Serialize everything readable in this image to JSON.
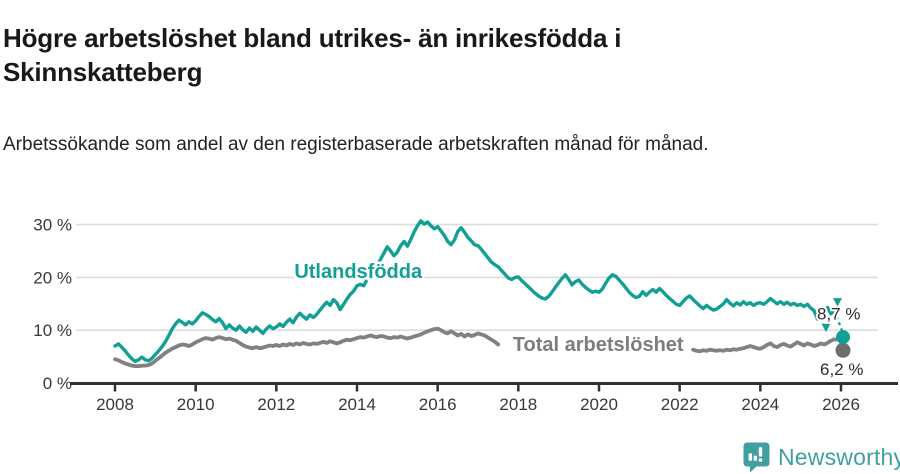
{
  "header": {
    "title": "Högre arbetslöshet bland utrikes- än inrikesfödda i Skinnskatteberg",
    "subtitle": "Arbetssökande som andel av den registerbaserade arbetskraften månad för månad."
  },
  "footer": {
    "brand": "Newsworthy",
    "brand_color": "#3f9fa4"
  },
  "chart_data": {
    "type": "line",
    "title": "Högre arbetslöshet bland utrikes- än inrikesfödda i Skinnskatteberg",
    "subtitle": "Arbetssökande som andel av den registerbaserade arbetskraften månad för månad.",
    "unit": "%",
    "grid": true,
    "x_axis": {
      "ticks": [
        2008,
        2010,
        2012,
        2014,
        2016,
        2018,
        2020,
        2022,
        2024,
        2026
      ],
      "labels": [
        "2008",
        "2010",
        "2012",
        "2014",
        "2016",
        "2018",
        "2020",
        "2022",
        "2024",
        "2026"
      ],
      "range": [
        2007.5,
        2026.5
      ]
    },
    "y_axis": {
      "ticks": [
        0,
        10,
        20,
        30
      ],
      "labels": [
        "0 %",
        "10 %",
        "20 %",
        "30 %"
      ],
      "range": [
        0,
        32
      ]
    },
    "series": [
      {
        "id": "total",
        "name": "Total arbetslöshet",
        "color": "#818181",
        "dot_color": "#6e6e6e",
        "width": 3.8,
        "label_pos": {
          "year": 2019.98,
          "value": 7.4
        },
        "label_side": "below",
        "arrows": false,
        "segments": [
          {
            "start_year": 2008.0,
            "step_months": 1,
            "values": [
              4.5,
              4.3,
              4.0,
              3.7,
              3.5,
              3.3,
              3.2,
              3.2,
              3.3,
              3.3,
              3.4,
              3.7,
              4.2,
              4.7,
              5.2,
              5.7,
              6.1,
              6.5,
              6.8,
              7.1,
              7.3,
              7.2,
              7.0,
              7.3,
              7.7,
              8.0,
              8.3,
              8.5,
              8.4,
              8.2,
              8.5,
              8.7,
              8.5,
              8.3,
              8.4,
              8.2,
              8.0,
              7.6,
              7.2,
              6.9,
              6.7,
              6.6,
              6.8,
              6.6,
              6.7,
              6.9,
              7.1,
              7.0,
              7.2,
              7.0,
              7.3,
              7.1,
              7.4,
              7.2,
              7.5,
              7.3,
              7.6,
              7.4,
              7.3,
              7.5,
              7.4,
              7.6,
              7.8,
              7.6,
              7.9,
              7.7,
              7.5,
              7.7,
              8.0,
              8.2,
              8.1,
              8.3,
              8.5,
              8.7,
              8.6,
              8.8,
              9.0,
              8.8,
              8.7,
              8.9,
              8.8,
              8.6,
              8.5,
              8.7,
              8.6,
              8.8,
              8.6,
              8.4,
              8.6,
              8.8,
              9.0,
              9.2,
              9.5,
              9.8,
              10.0,
              10.2,
              10.3,
              10.0,
              9.6,
              9.4,
              9.8,
              9.4,
              9.0,
              9.3,
              8.8,
              9.2,
              8.9,
              9.1,
              9.4,
              9.2,
              9.0,
              8.6,
              8.2,
              7.8,
              7.3
            ]
          },
          {
            "start_year": 2022.3333,
            "step_months": 1,
            "values": [
              6.3,
              6.1,
              6.0,
              6.2,
              6.1,
              6.3,
              6.2,
              6.1,
              6.2,
              6.1,
              6.3,
              6.2,
              6.4,
              6.3,
              6.5,
              6.6,
              6.8,
              7.0,
              6.8,
              6.6,
              6.5,
              6.8,
              7.2,
              7.5,
              7.0,
              6.8,
              7.2,
              7.4,
              7.1,
              6.9,
              7.3,
              7.7,
              7.4,
              7.1,
              7.5,
              7.3,
              7.0,
              7.2,
              7.5,
              7.3,
              7.6,
              8.0,
              8.3
            ]
          }
        ],
        "latest": {
          "year": 2026.05,
          "value": 6.2,
          "label": "6,2 %"
        }
      },
      {
        "id": "utlandsfodda",
        "name": "Utlandsfödda",
        "color": "#12a095",
        "dot_color": "#12a095",
        "width": 3.4,
        "label_pos": {
          "year": 2014.03,
          "value": 21.2
        },
        "label_side": "above",
        "arrows": true,
        "segments": [
          {
            "start_year": 2008.0,
            "step_months": 1,
            "values": [
              7.0,
              7.4,
              6.8,
              6.1,
              5.3,
              4.6,
              4.1,
              4.4,
              4.9,
              4.4,
              4.2,
              4.7,
              5.4,
              6.1,
              6.9,
              7.8,
              9.0,
              10.2,
              11.2,
              11.9,
              11.5,
              11.0,
              11.6,
              11.2,
              11.8,
              12.6,
              13.3,
              13.0,
              12.6,
              12.0,
              11.6,
              12.2,
              11.4,
              10.3,
              11.0,
              10.4,
              10.0,
              10.8,
              10.1,
              9.6,
              10.4,
              9.8,
              10.6,
              10.0,
              9.4,
              10.2,
              10.8,
              10.3,
              10.6,
              11.2,
              10.7,
              11.5,
              12.1,
              11.4,
              12.5,
              13.2,
              12.6,
              12.1,
              12.9,
              12.4,
              13.0,
              13.8,
              14.6,
              15.3,
              14.7,
              15.8,
              15.2,
              13.9,
              14.9,
              15.9,
              16.8,
              17.4,
              18.4,
              18.7,
              18.4,
              19.6,
              21.1,
              22.9,
              22.2,
              23.4,
              24.6,
              25.8,
              25.0,
              24.1,
              24.8,
              26.0,
              26.8,
              25.9,
              27.2,
              28.6,
              29.8,
              30.7,
              30.1,
              30.5,
              29.8,
              29.2,
              29.6,
              28.8,
              27.9,
              26.8,
              26.2,
              27.1,
              28.7,
              29.4,
              28.5,
              27.6,
              26.9,
              26.2,
              26.0,
              25.3,
              24.5,
              23.7,
              22.9,
              22.4,
              22.0,
              21.3,
              20.6,
              19.9,
              19.6,
              20.0,
              20.1,
              19.4,
              18.8,
              18.2,
              17.6,
              17.0,
              16.5,
              16.1,
              15.9,
              16.4,
              17.2,
              18.1,
              19.0,
              19.8,
              20.5,
              19.6,
              18.6,
              19.2,
              19.5,
              18.7,
              18.1,
              17.6,
              17.2,
              17.4,
              17.2,
              17.8,
              18.9,
              19.9,
              20.5,
              20.2,
              19.5,
              18.8,
              18.0,
              17.2,
              16.6,
              16.2,
              16.4,
              17.3,
              16.6,
              17.2,
              17.7,
              17.2,
              17.9,
              17.3,
              16.6,
              16.0,
              15.5,
              14.9,
              14.7,
              15.4,
              16.1,
              16.5,
              15.8,
              15.2,
              14.6,
              14.1,
              14.7,
              14.2,
              13.8,
              14.0,
              14.5,
              15.0,
              15.8,
              15.1,
              14.6,
              15.2,
              14.8,
              15.4,
              14.9,
              15.2,
              14.7,
              15.1,
              15.2,
              14.9,
              15.4,
              16.0,
              15.5,
              15.0,
              15.4,
              14.9,
              15.3,
              14.8,
              15.1,
              14.7,
              14.9,
              14.5,
              14.9,
              14.2,
              13.7,
              12.1,
              12.6,
              13.5,
              14.3,
              13.1,
              13.8
            ]
          }
        ],
        "latest": {
          "year": 2026.05,
          "value": 8.7,
          "label": "8,7 %"
        }
      }
    ]
  }
}
